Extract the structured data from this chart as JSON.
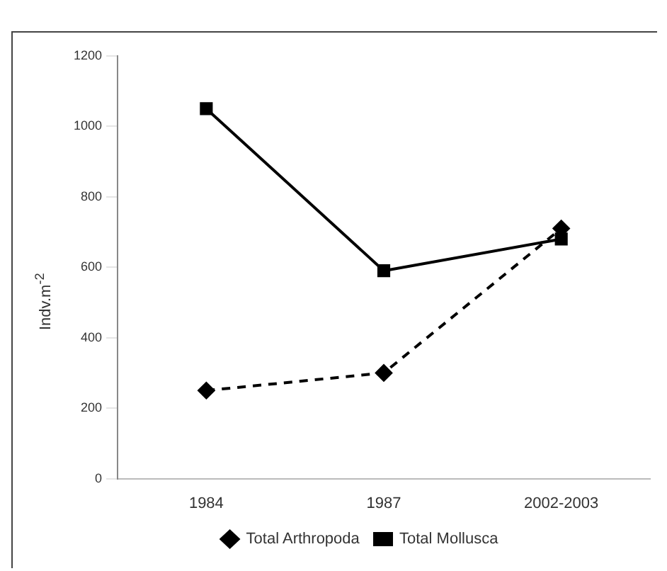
{
  "chart_data": {
    "type": "line",
    "ylabel": "Indv.m$^{-2}$",
    "categories": [
      "1984",
      "1987",
      "2002-2003"
    ],
    "series": [
      {
        "name": "Total Arthropoda",
        "color": "#000000",
        "values": [
          250,
          300,
          710
        ],
        "marker": "diamond",
        "line_style": "dashed"
      },
      {
        "name": "Total Mollusca",
        "color": "#000000",
        "values": [
          1050,
          590,
          680
        ],
        "marker": "square",
        "line_style": "solid"
      }
    ],
    "ylim": [
      0,
      1200
    ],
    "yticks": [
      0,
      200,
      400,
      600,
      800,
      1000,
      1200
    ],
    "grid": false,
    "legend": "bottom"
  }
}
